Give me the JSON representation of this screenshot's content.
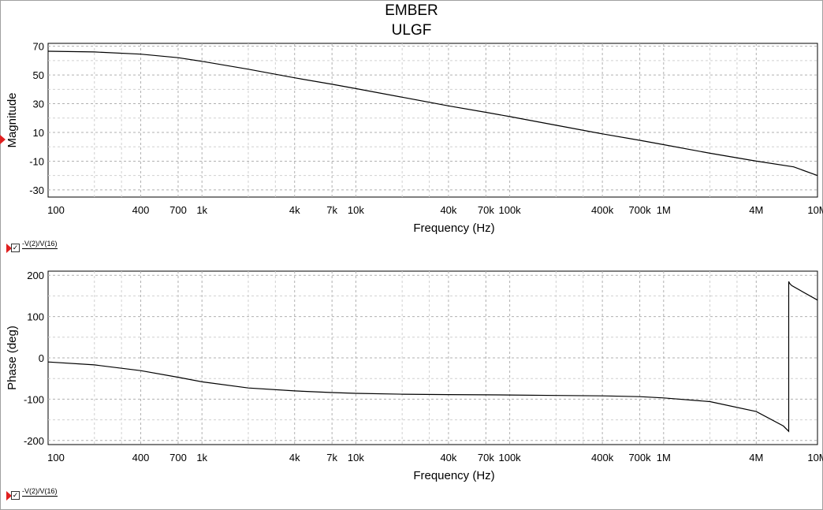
{
  "title_line1": "EMBER",
  "title_line2": "ULGF",
  "chart_data": [
    {
      "type": "line",
      "xlabel": "Frequency (Hz)",
      "ylabel": "Magnitude",
      "xscale": "log",
      "xlim": [
        100,
        10000000
      ],
      "ylim": [
        -35,
        72
      ],
      "grid": true,
      "x_tick_values": [
        100,
        400,
        700,
        1000,
        4000,
        7000,
        10000,
        40000,
        70000,
        100000,
        400000,
        700000,
        1000000,
        4000000,
        10000000
      ],
      "x_tick_labels": [
        "100",
        "400",
        "700",
        "1k",
        "4k",
        "7k",
        "10k",
        "40k",
        "70k",
        "100k",
        "400k",
        "700k",
        "1M",
        "4M",
        "10M"
      ],
      "y_ticks": [
        70,
        50,
        30,
        10,
        -10,
        -30
      ],
      "series": [
        {
          "name": "-V(2)/V(16)",
          "x": [
            100,
            200,
            400,
            700,
            1000,
            2000,
            4000,
            7000,
            10000,
            20000,
            40000,
            70000,
            100000,
            200000,
            400000,
            700000,
            1000000,
            2000000,
            4000000,
            7000000,
            10000000
          ],
          "y": [
            66.5,
            66,
            64.5,
            62,
            59.5,
            54,
            48,
            43.5,
            40.5,
            34.5,
            28.5,
            24,
            21,
            15,
            9,
            4.5,
            1.5,
            -4.5,
            -10,
            -14,
            -20
          ]
        }
      ],
      "legend": "bottom-left"
    },
    {
      "type": "line",
      "xlabel": "Frequency (Hz)",
      "ylabel": "Phase (deg)",
      "xscale": "log",
      "xlim": [
        100,
        10000000
      ],
      "ylim": [
        -210,
        210
      ],
      "grid": true,
      "x_tick_values": [
        100,
        400,
        700,
        1000,
        4000,
        7000,
        10000,
        40000,
        70000,
        100000,
        400000,
        700000,
        1000000,
        4000000,
        10000000
      ],
      "x_tick_labels": [
        "100",
        "400",
        "700",
        "1k",
        "4k",
        "7k",
        "10k",
        "40k",
        "70k",
        "100k",
        "400k",
        "700k",
        "1M",
        "4M",
        "10M"
      ],
      "y_ticks": [
        200,
        100,
        0,
        -100,
        -200
      ],
      "series": [
        {
          "name": "-V(2)/V(16)",
          "x": [
            100,
            200,
            400,
            700,
            1000,
            2000,
            4000,
            7000,
            10000,
            20000,
            40000,
            70000,
            100000,
            200000,
            400000,
            700000,
            1000000,
            2000000,
            4000000,
            6000000,
            6500000,
            6500000,
            6600000,
            6800000,
            10000000
          ],
          "y": [
            -10,
            -17,
            -31,
            -47,
            -58,
            -73,
            -80,
            -84,
            -86,
            -88,
            -89,
            -89.5,
            -90,
            -91,
            -92,
            -94,
            -97,
            -106,
            -130,
            -165,
            -178,
            185,
            180,
            175,
            140
          ]
        }
      ],
      "legend": "bottom-left"
    }
  ]
}
